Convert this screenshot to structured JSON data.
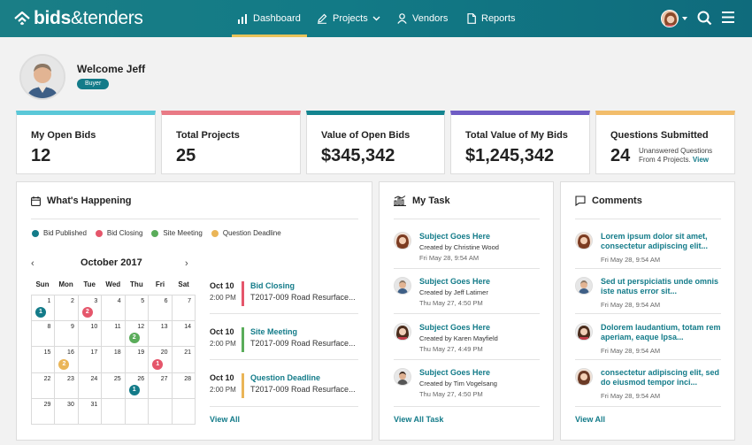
{
  "header": {
    "logo_bold": "bids",
    "logo_light": "&tenders",
    "nav": [
      {
        "label": "Dashboard",
        "icon": "bar-chart-icon"
      },
      {
        "label": "Projects",
        "icon": "pencil-icon"
      },
      {
        "label": "Vendors",
        "icon": "person-icon"
      },
      {
        "label": "Reports",
        "icon": "document-icon"
      }
    ]
  },
  "welcome": {
    "text": "Welcome Jeff",
    "role": "Buyer"
  },
  "stats": [
    {
      "label": "My Open Bids",
      "value": "12",
      "color": "#5ac8d8"
    },
    {
      "label": "Total Projects",
      "value": "25",
      "color": "#e97a85"
    },
    {
      "label": "Value of Open Bids",
      "value": "$345,342",
      "color": "#13848f"
    },
    {
      "label": "Total Value of My Bids",
      "value": "$1,245,342",
      "color": "#6f5cc4"
    },
    {
      "label": "Questions Submitted",
      "value": "24",
      "sub": "Unanswered Questions",
      "sub2": "From 4 Projects.",
      "link": "View",
      "color": "#f2bd6b"
    }
  ],
  "happening": {
    "title": "What's Happening",
    "legend": [
      {
        "label": "Bid Published",
        "color": "#137b89"
      },
      {
        "label": "Bid Closing",
        "color": "#e5566b"
      },
      {
        "label": "Site Meeting",
        "color": "#5aac5a"
      },
      {
        "label": "Question Deadline",
        "color": "#eab557"
      }
    ],
    "month": "October 2017",
    "dow": [
      "Sun",
      "Mon",
      "Tue",
      "Wed",
      "Thu",
      "Fri",
      "Sat"
    ],
    "events": [
      {
        "date": "Oct 10",
        "time": "2:00 PM",
        "name": "Bid Closing",
        "desc": "T2017-009 Road Resurface...",
        "color": "#e5566b"
      },
      {
        "date": "Oct 10",
        "time": "2:00 PM",
        "name": "Site Meeting",
        "desc": "T2017-009 Road Resurface...",
        "color": "#5aac5a"
      },
      {
        "date": "Oct 10",
        "time": "2:00 PM",
        "name": "Question Deadline",
        "desc": "T2017-009 Road Resurface...",
        "color": "#eab557"
      }
    ],
    "view_all": "View All"
  },
  "calendar_cells": [
    {
      "d": ""
    },
    {
      "d": ""
    },
    {
      "d": ""
    },
    {
      "d": ""
    },
    {
      "d": ""
    },
    {
      "d": ""
    },
    {
      "d": ""
    }
  ],
  "tasks": {
    "title": "My Task",
    "items": [
      {
        "subject": "Subject Goes Here",
        "by": "Created by Christine Wood",
        "time": "Fri May 28, 9:54 AM"
      },
      {
        "subject": "Subject Goes Here",
        "by": "Created by Jeff Latimer",
        "time": "Thu May 27, 4:50 PM"
      },
      {
        "subject": "Subject Goes Here",
        "by": "Created by Karen Mayfield",
        "time": "Thu May 27, 4:49 PM"
      },
      {
        "subject": "Subject Goes Here",
        "by": "Created by Tim Vogelsang",
        "time": "Thu May 27, 4:50 PM"
      }
    ],
    "view_all": "View All Task"
  },
  "comments": {
    "title": "Comments",
    "items": [
      {
        "text": "Lorem ipsum dolor sit amet, consectetur adipiscing elit...",
        "time": "Fri May 28, 9:54 AM"
      },
      {
        "text": "Sed ut perspiciatis unde omnis iste natus error sit...",
        "time": "Fri May 28, 9:54 AM"
      },
      {
        "text": "Dolorem laudantium, totam rem aperiam, eaque Ipsa...",
        "time": "Fri May 28, 9:54 AM"
      },
      {
        "text": "consectetur adipiscing elit, sed do eiusmod tempor inci...",
        "time": "Fri May 28, 9:54 AM"
      }
    ],
    "view_all": "View All"
  }
}
